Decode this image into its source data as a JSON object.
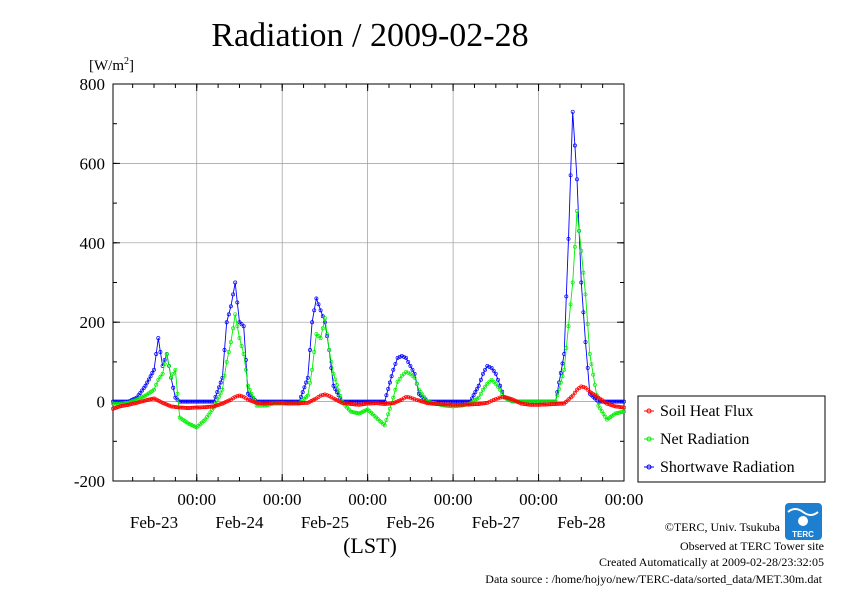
{
  "chart_data": {
    "type": "line",
    "title": "Radiation / 2009-02-28",
    "ylabel": "[W/m",
    "ylabel_sup": "2",
    "ylabel_end": "]",
    "xlabel": "(LST)",
    "ylim": [
      -200,
      800
    ],
    "yticks": [
      -200,
      0,
      200,
      400,
      600,
      800
    ],
    "ytick_labels": [
      "-200",
      "0",
      "200",
      "400",
      "600",
      "800"
    ],
    "xlim": [
      -0.98,
      5.0
    ],
    "x_time_labels": [
      "00:00",
      "00:00",
      "00:00",
      "00:00",
      "00:00",
      "00:00"
    ],
    "x_date_labels": [
      "Feb-23",
      "Feb-24",
      "Feb-25",
      "Feb-26",
      "Feb-27",
      "Feb-28"
    ],
    "grid": true,
    "legend_position": "right",
    "series": [
      {
        "name": "Soil Heat Flux",
        "color": "#ff0000",
        "x": [
          -0.98,
          -0.9,
          -0.8,
          -0.7,
          -0.6,
          -0.5,
          -0.4,
          -0.3,
          -0.2,
          -0.1,
          0.0,
          0.1,
          0.2,
          0.3,
          0.4,
          0.45,
          0.5,
          0.55,
          0.6,
          0.7,
          0.8,
          0.9,
          1.0,
          1.1,
          1.2,
          1.3,
          1.4,
          1.45,
          1.5,
          1.55,
          1.6,
          1.7,
          1.8,
          1.9,
          2.0,
          2.1,
          2.2,
          2.3,
          2.4,
          2.45,
          2.5,
          2.55,
          2.6,
          2.7,
          2.8,
          2.9,
          3.0,
          3.1,
          3.2,
          3.3,
          3.4,
          3.45,
          3.5,
          3.55,
          3.6,
          3.7,
          3.8,
          3.9,
          4.0,
          4.1,
          4.2,
          4.3,
          4.4,
          4.45,
          4.5,
          4.55,
          4.6,
          4.7,
          4.8,
          4.9,
          5.0
        ],
        "y": [
          -18,
          -12,
          -8,
          -3,
          3,
          8,
          -3,
          -12,
          -15,
          -16,
          -15,
          -14,
          -12,
          -5,
          5,
          12,
          15,
          12,
          5,
          -3,
          -5,
          -3,
          -3,
          -5,
          -4,
          -3,
          8,
          15,
          18,
          14,
          8,
          -3,
          -6,
          -8,
          -5,
          -4,
          -6,
          -4,
          5,
          12,
          10,
          6,
          3,
          -4,
          -6,
          -7,
          -8,
          -8,
          -7,
          -6,
          -3,
          2,
          6,
          10,
          12,
          5,
          -5,
          -8,
          -8,
          -7,
          -6,
          -5,
          15,
          30,
          38,
          35,
          25,
          10,
          -5,
          -12,
          -15
        ]
      },
      {
        "name": "Net Radiation",
        "color": "#00ee00",
        "x": [
          -0.98,
          -0.9,
          -0.8,
          -0.7,
          -0.6,
          -0.5,
          -0.45,
          -0.4,
          -0.35,
          -0.3,
          -0.25,
          -0.2,
          -0.1,
          0.0,
          0.1,
          0.2,
          0.3,
          0.35,
          0.4,
          0.45,
          0.5,
          0.55,
          0.6,
          0.7,
          0.8,
          0.9,
          1.0,
          1.1,
          1.2,
          1.3,
          1.35,
          1.4,
          1.45,
          1.5,
          1.55,
          1.6,
          1.7,
          1.8,
          1.9,
          2.0,
          2.1,
          2.2,
          2.3,
          2.35,
          2.4,
          2.45,
          2.5,
          2.55,
          2.6,
          2.7,
          2.8,
          2.9,
          3.0,
          3.1,
          3.2,
          3.3,
          3.35,
          3.4,
          3.45,
          3.5,
          3.55,
          3.6,
          3.7,
          3.8,
          3.9,
          4.0,
          4.1,
          4.2,
          4.3,
          4.35,
          4.4,
          4.45,
          4.5,
          4.55,
          4.6,
          4.7,
          4.8,
          4.9,
          5.0
        ],
        "y": [
          -5,
          -5,
          -3,
          5,
          15,
          30,
          55,
          70,
          120,
          60,
          80,
          -40,
          -55,
          -65,
          -45,
          -15,
          30,
          100,
          150,
          220,
          160,
          120,
          40,
          -10,
          -10,
          -5,
          -5,
          -5,
          -5,
          15,
          80,
          170,
          160,
          210,
          130,
          70,
          0,
          -25,
          -30,
          -20,
          -40,
          -60,
          10,
          50,
          65,
          75,
          70,
          60,
          30,
          0,
          -5,
          -10,
          -12,
          -10,
          -5,
          10,
          30,
          45,
          55,
          45,
          30,
          10,
          0,
          0,
          0,
          0,
          0,
          0,
          80,
          190,
          300,
          480,
          380,
          270,
          120,
          -10,
          -45,
          -30,
          -25
        ]
      },
      {
        "name": "Shortwave Radiation",
        "color": "#0000ff",
        "x": [
          -0.98,
          -0.9,
          -0.8,
          -0.7,
          -0.6,
          -0.5,
          -0.45,
          -0.4,
          -0.35,
          -0.3,
          -0.25,
          -0.2,
          -0.1,
          0.0,
          0.1,
          0.2,
          0.3,
          0.35,
          0.4,
          0.45,
          0.5,
          0.55,
          0.6,
          0.7,
          0.8,
          0.9,
          1.0,
          1.1,
          1.2,
          1.3,
          1.35,
          1.4,
          1.45,
          1.5,
          1.55,
          1.6,
          1.7,
          1.8,
          1.9,
          2.0,
          2.1,
          2.2,
          2.3,
          2.35,
          2.4,
          2.45,
          2.5,
          2.55,
          2.6,
          2.7,
          2.8,
          2.9,
          3.0,
          3.1,
          3.2,
          3.3,
          3.35,
          3.4,
          3.45,
          3.5,
          3.55,
          3.6,
          3.7,
          3.8,
          3.9,
          4.0,
          4.1,
          4.2,
          4.3,
          4.35,
          4.4,
          4.45,
          4.5,
          4.55,
          4.6,
          4.7,
          4.8,
          4.9,
          5.0
        ],
        "y": [
          0,
          0,
          0,
          10,
          40,
          80,
          160,
          90,
          120,
          60,
          10,
          0,
          0,
          0,
          0,
          0,
          60,
          200,
          240,
          300,
          200,
          190,
          20,
          0,
          0,
          0,
          0,
          0,
          0,
          60,
          200,
          260,
          230,
          200,
          130,
          40,
          0,
          0,
          0,
          0,
          0,
          0,
          80,
          110,
          115,
          110,
          90,
          70,
          20,
          0,
          0,
          0,
          0,
          0,
          0,
          40,
          70,
          90,
          85,
          70,
          40,
          10,
          0,
          0,
          0,
          0,
          0,
          0,
          120,
          410,
          730,
          560,
          300,
          150,
          20,
          0,
          0,
          0,
          0
        ]
      }
    ]
  },
  "footer": {
    "credit": "©TERC, Univ. Tsukuba",
    "site": "Observed at TERC Tower site",
    "created": "Created Automatically at 2009-02-28/23:32:05",
    "source": "Data source : /home/hojyo/new/TERC-data/sorted_data/MET.30m.dat",
    "logo_text": "TERC"
  }
}
